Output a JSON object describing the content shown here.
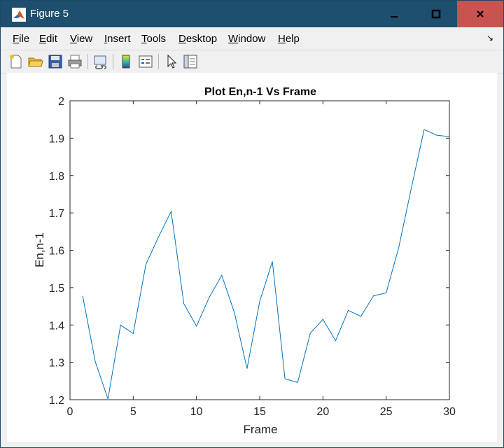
{
  "window": {
    "title": "Figure 5"
  },
  "menu": {
    "items": [
      {
        "first": "F",
        "rest": "ile"
      },
      {
        "first": "E",
        "rest": "dit"
      },
      {
        "first": "V",
        "rest": "iew"
      },
      {
        "first": "I",
        "rest": "nsert"
      },
      {
        "first": "T",
        "rest": "ools"
      },
      {
        "first": "D",
        "rest": "esktop"
      },
      {
        "first": "W",
        "rest": "indow"
      },
      {
        "first": "H",
        "rest": "elp"
      }
    ]
  },
  "toolbar": {
    "icons": [
      "new-figure-icon",
      "open-file-icon",
      "save-icon",
      "print-icon",
      "link-plot-icon",
      "colorbar-icon",
      "legend-icon",
      "edit-plot-icon",
      "property-editor-icon"
    ]
  },
  "colors": {
    "line": "#0072bd",
    "titlebar": "#1e4f6e",
    "close": "#c9534f"
  },
  "chart_data": {
    "type": "line",
    "title": "Plot En,n-1 Vs Frame",
    "xlabel": "Frame",
    "ylabel": "En,n-1",
    "xlim": [
      0,
      30
    ],
    "ylim": [
      1.2,
      2.0
    ],
    "xticks": [
      0,
      5,
      10,
      15,
      20,
      25,
      30
    ],
    "yticks": [
      1.2,
      1.3,
      1.4,
      1.5,
      1.6,
      1.7,
      1.8,
      1.9,
      2.0
    ],
    "grid": false,
    "series": [
      {
        "x": [
          1,
          2,
          3,
          4,
          5,
          6,
          7,
          8,
          9,
          10,
          11,
          12,
          13,
          14,
          15,
          16,
          17,
          18,
          19,
          20,
          21,
          22,
          23,
          24,
          25,
          26,
          27,
          28,
          29,
          30
        ],
        "values": [
          1.478,
          1.302,
          1.202,
          1.4,
          1.377,
          1.562,
          1.636,
          1.704,
          1.457,
          1.397,
          1.473,
          1.533,
          1.433,
          1.283,
          1.463,
          1.57,
          1.256,
          1.246,
          1.378,
          1.415,
          1.358,
          1.439,
          1.423,
          1.478,
          1.486,
          1.608,
          1.768,
          1.923,
          1.908,
          1.904
        ]
      }
    ]
  }
}
